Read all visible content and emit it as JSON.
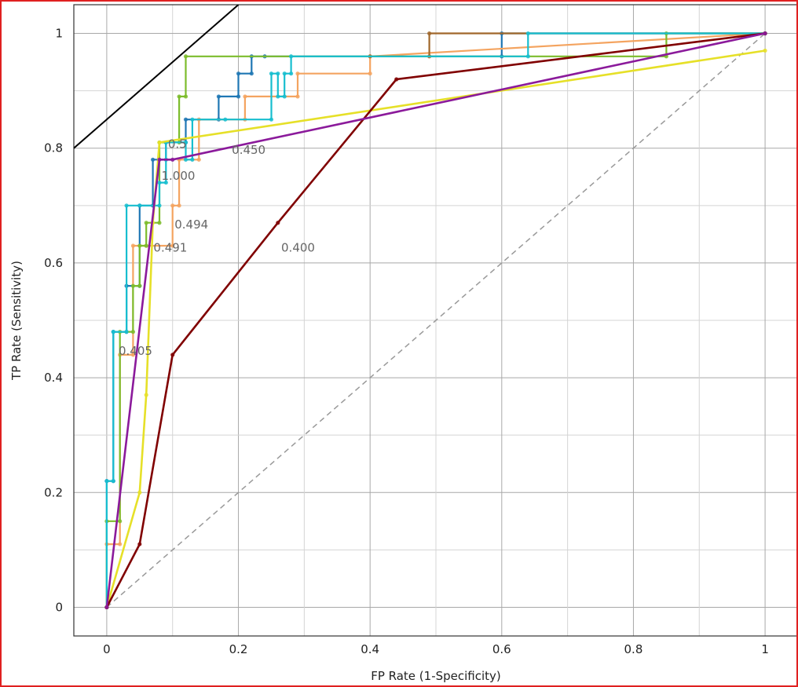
{
  "chart_data": {
    "type": "line",
    "title": "",
    "xlabel": "FP Rate (1-Specificity)",
    "ylabel": "TP Rate (Sensitivity)",
    "xlim": [
      -0.05,
      1.05
    ],
    "ylim": [
      -0.05,
      1.05
    ],
    "x_ticks": [
      "0",
      "0.2",
      "0.4",
      "0.6",
      "0.8",
      "1"
    ],
    "y_ticks": [
      "0",
      "0.2",
      "0.4",
      "0.6",
      "0.8",
      "1"
    ],
    "grid": true,
    "legend": "none",
    "diagonal": {
      "x": [
        0,
        1
      ],
      "y": [
        0,
        1
      ],
      "color": "#999999",
      "style": "dashed"
    },
    "iso_line": {
      "x": [
        -0.05,
        0.2
      ],
      "y": [
        0.8,
        1.05
      ],
      "color": "#000000"
    },
    "series": [
      {
        "color": "#1f77b4",
        "x": [
          0,
          0,
          0.01,
          0.01,
          0.03,
          0.03,
          0.05,
          0.05,
          0.07,
          0.07,
          0.09,
          0.09,
          0.12,
          0.12,
          0.17,
          0.17,
          0.2,
          0.2,
          0.22,
          0.22,
          0.24,
          0.24,
          0.6,
          0.6,
          1
        ],
        "y": [
          0,
          0.22,
          0.22,
          0.48,
          0.48,
          0.56,
          0.56,
          0.7,
          0.7,
          0.78,
          0.78,
          0.81,
          0.81,
          0.85,
          0.85,
          0.89,
          0.89,
          0.93,
          0.93,
          0.96,
          0.96,
          0.96,
          0.96,
          1,
          1
        ]
      },
      {
        "color": "#f4a460",
        "x": [
          0,
          0,
          0.02,
          0.02,
          0.04,
          0.04,
          0.06,
          0.06,
          0.1,
          0.1,
          0.11,
          0.11,
          0.14,
          0.14,
          0.21,
          0.21,
          0.29,
          0.29,
          0.4,
          0.4,
          1
        ],
        "y": [
          0,
          0.11,
          0.11,
          0.44,
          0.44,
          0.63,
          0.63,
          0.63,
          0.63,
          0.7,
          0.7,
          0.78,
          0.78,
          0.85,
          0.85,
          0.89,
          0.89,
          0.93,
          0.93,
          0.96,
          1
        ]
      },
      {
        "color": "#a0672a",
        "x": [
          0.4,
          0.49,
          0.49,
          1
        ],
        "y": [
          0.96,
          0.96,
          1,
          1
        ]
      },
      {
        "color": "#7cbc2c",
        "x": [
          0,
          0,
          0.02,
          0.02,
          0.04,
          0.04,
          0.05,
          0.05,
          0.06,
          0.06,
          0.08,
          0.08,
          0.11,
          0.11,
          0.12,
          0.12,
          0.85,
          0.85,
          1
        ],
        "y": [
          0,
          0.15,
          0.15,
          0.48,
          0.48,
          0.56,
          0.56,
          0.63,
          0.63,
          0.67,
          0.67,
          0.81,
          0.81,
          0.89,
          0.89,
          0.96,
          0.96,
          1,
          1
        ]
      },
      {
        "color": "#17becf",
        "x": [
          0,
          0,
          0.01,
          0.01,
          0.03,
          0.03,
          0.05,
          0.05,
          0.08,
          0.08,
          0.09,
          0.09,
          0.12,
          0.12,
          0.13,
          0.13,
          0.18,
          0.18,
          0.25,
          0.25,
          0.26,
          0.26,
          0.27,
          0.27,
          0.28,
          0.28,
          0.64,
          0.64,
          1
        ],
        "y": [
          0,
          0.22,
          0.22,
          0.48,
          0.48,
          0.7,
          0.7,
          0.7,
          0.7,
          0.74,
          0.74,
          0.81,
          0.81,
          0.78,
          0.78,
          0.85,
          0.85,
          0.85,
          0.85,
          0.93,
          0.93,
          0.89,
          0.89,
          0.93,
          0.93,
          0.96,
          0.96,
          1,
          1
        ]
      },
      {
        "color": "#e6e028",
        "x": [
          0,
          0.05,
          0.06,
          0.07,
          0.08,
          1
        ],
        "y": [
          0,
          0.2,
          0.37,
          0.67,
          0.81,
          0.97
        ]
      },
      {
        "color": "#800000",
        "x": [
          0,
          0.05,
          0.1,
          0.26,
          0.44,
          1
        ],
        "y": [
          0,
          0.11,
          0.44,
          0.67,
          0.92,
          1
        ]
      },
      {
        "color": "#8b1a9b",
        "x": [
          0,
          0.08,
          0.1,
          1
        ],
        "y": [
          0,
          0.78,
          0.78,
          1
        ]
      }
    ],
    "threshold_labels": [
      {
        "text": "0.5",
        "x": 0.093,
        "y": 0.8
      },
      {
        "text": "0.450",
        "x": 0.19,
        "y": 0.79
      },
      {
        "text": "1.000",
        "x": 0.083,
        "y": 0.745
      },
      {
        "text": "0.494",
        "x": 0.103,
        "y": 0.66
      },
      {
        "text": "0.491",
        "x": 0.071,
        "y": 0.62
      },
      {
        "text": "0.400",
        "x": 0.265,
        "y": 0.62
      },
      {
        "text": "0.405",
        "x": 0.018,
        "y": 0.44
      }
    ]
  }
}
